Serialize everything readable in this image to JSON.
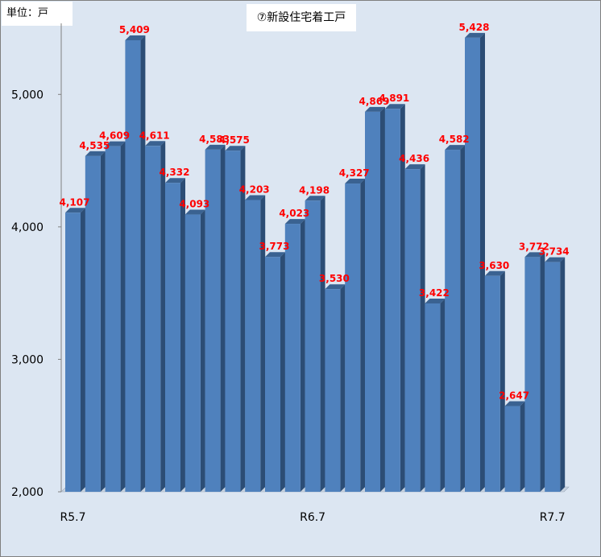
{
  "unit_label": "単位：戸",
  "chart_data": {
    "type": "bar",
    "title": "⑦新設住宅着工戸",
    "xlabel": "",
    "ylabel": "",
    "ylim": [
      2000,
      5500
    ],
    "yticks": [
      2000,
      3000,
      4000,
      5000
    ],
    "ytick_labels": [
      "2,000",
      "3,000",
      "4,000",
      "5,000"
    ],
    "xtick_labels": [
      {
        "index": 0,
        "text": "R5.7"
      },
      {
        "index": 12,
        "text": "R6.7"
      },
      {
        "index": 24,
        "text": "R7.7"
      }
    ],
    "values": [
      4107,
      4535,
      4609,
      5409,
      4611,
      4332,
      4093,
      4583,
      4575,
      4203,
      3773,
      4023,
      4198,
      3530,
      4327,
      4869,
      4891,
      4436,
      3422,
      4582,
      5428,
      3630,
      2647,
      3772,
      3734
    ],
    "data_labels": [
      "4,107",
      "4,535",
      "4,609",
      "5,409",
      "4,611",
      "4,332",
      "4,093",
      "4,583",
      "4,575",
      "4,203",
      "3,773",
      "4,023",
      "4,198",
      "3,530",
      "4,327",
      "4,869",
      "4,891",
      "4,436",
      "3,422",
      "4,582",
      "5,428",
      "3,630",
      "2,647",
      "3,772",
      "3,734"
    ],
    "grid": false,
    "legend": "none",
    "colors": {
      "bar": "#4f81bd",
      "bar_side": "#2c4d75",
      "bar_top": "#3a6291",
      "label": "#ff0000",
      "background": "#dce6f2"
    }
  }
}
